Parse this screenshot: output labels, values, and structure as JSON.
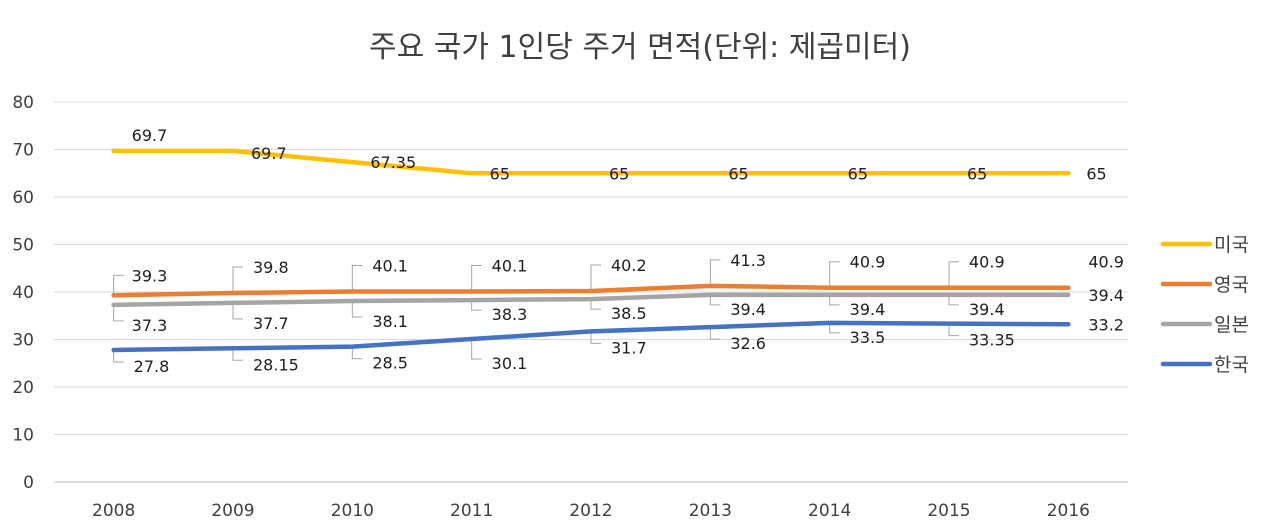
{
  "chart_data": {
    "type": "line",
    "title": "주요 국가 1인당 주거 면적(단위: 제곱미터)",
    "categories": [
      "2008",
      "2009",
      "2010",
      "2011",
      "2012",
      "2013",
      "2014",
      "2015",
      "2016"
    ],
    "ylim": [
      0,
      80
    ],
    "yticks": [
      0,
      10,
      20,
      30,
      40,
      50,
      60,
      70,
      80
    ],
    "grid": true,
    "legend_position": "right",
    "series": [
      {
        "name": "미국",
        "color": "#FFC000",
        "values": [
          69.7,
          69.7,
          67.35,
          65,
          65,
          65,
          65,
          65,
          65
        ],
        "labels": [
          "69.7",
          "69.7",
          "67.35",
          "65",
          "65",
          "65",
          "65",
          "65",
          "65"
        ]
      },
      {
        "name": "영국",
        "color": "#ED7D31",
        "values": [
          39.3,
          39.8,
          40.1,
          40.1,
          40.2,
          41.3,
          40.9,
          40.9,
          40.9
        ],
        "labels": [
          "39.3",
          "39.8",
          "40.1",
          "40.1",
          "40.2",
          "41.3",
          "40.9",
          "40.9",
          "40.9"
        ]
      },
      {
        "name": "일본",
        "color": "#A5A5A5",
        "values": [
          37.3,
          37.7,
          38.1,
          38.3,
          38.5,
          39.4,
          39.4,
          39.4,
          39.4
        ],
        "labels": [
          "37.3",
          "37.7",
          "38.1",
          "38.3",
          "38.5",
          "39.4",
          "39.4",
          "39.4",
          "39.4"
        ]
      },
      {
        "name": "한국",
        "color": "#4472C4",
        "values": [
          27.8,
          28.15,
          28.5,
          30.1,
          31.7,
          32.6,
          33.5,
          33.35,
          33.2
        ],
        "labels": [
          "27.8",
          "28.15",
          "28.5",
          "30.1",
          "31.7",
          "32.6",
          "33.5",
          "33.35",
          "33.2"
        ]
      }
    ]
  }
}
